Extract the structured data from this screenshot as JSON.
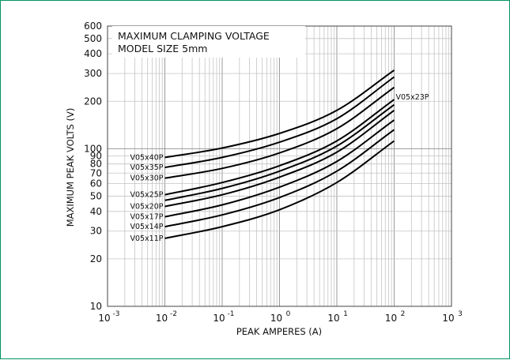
{
  "chart_data": {
    "type": "line",
    "title_lines": [
      "MAXIMUM CLAMPING VOLTAGE",
      "MODEL SIZE 5mm"
    ],
    "xlabel": "PEAK AMPERES (A)",
    "ylabel": "MAXIMUM PEAK VOLTS (V)",
    "x_scale": "log",
    "y_scale": "log",
    "xlim": [
      0.001,
      1000
    ],
    "ylim": [
      10,
      600
    ],
    "grid": true,
    "x_ticks": [
      {
        "base": "10",
        "exp": "-3"
      },
      {
        "base": "10",
        "exp": "-2"
      },
      {
        "base": "10",
        "exp": "-1"
      },
      {
        "base": "10",
        "exp": "0"
      },
      {
        "base": "10",
        "exp": "1"
      },
      {
        "base": "10",
        "exp": "2"
      },
      {
        "base": "10",
        "exp": "3"
      }
    ],
    "y_ticks": [
      "10",
      "20",
      "30",
      "40",
      "50",
      "60",
      "70",
      "80",
      "90",
      "100",
      "200",
      "300",
      "400",
      "500",
      "600"
    ],
    "series": [
      {
        "name": "V05x40P",
        "points": [
          [
            0.01,
            88
          ],
          [
            0.1,
            101
          ],
          [
            1,
            125
          ],
          [
            10,
            175
          ],
          [
            100,
            315
          ]
        ]
      },
      {
        "name": "V05x35P",
        "points": [
          [
            0.01,
            76
          ],
          [
            0.1,
            88
          ],
          [
            1,
            110
          ],
          [
            10,
            155
          ],
          [
            100,
            285
          ]
        ]
      },
      {
        "name": "V05x30P",
        "points": [
          [
            0.01,
            65
          ],
          [
            0.1,
            75
          ],
          [
            1,
            94
          ],
          [
            10,
            134
          ],
          [
            100,
            245
          ]
        ]
      },
      {
        "name": "V05x25P",
        "points": [
          [
            0.01,
            51
          ],
          [
            0.1,
            61
          ],
          [
            1,
            78
          ],
          [
            10,
            112
          ],
          [
            100,
            205
          ]
        ]
      },
      {
        "name": "V05x23P",
        "points": [
          [
            0.01,
            47
          ],
          [
            0.1,
            56
          ],
          [
            1,
            72
          ],
          [
            10,
            104
          ],
          [
            100,
            190
          ]
        ]
      },
      {
        "name": "V05x20P",
        "points": [
          [
            0.01,
            43
          ],
          [
            0.1,
            51
          ],
          [
            1,
            66
          ],
          [
            10,
            95
          ],
          [
            100,
            175
          ]
        ]
      },
      {
        "name": "V05x17P",
        "points": [
          [
            0.01,
            37
          ],
          [
            0.1,
            44
          ],
          [
            1,
            57
          ],
          [
            10,
            83
          ],
          [
            100,
            152
          ]
        ]
      },
      {
        "name": "V05x14P",
        "points": [
          [
            0.01,
            32
          ],
          [
            0.1,
            38
          ],
          [
            1,
            49
          ],
          [
            10,
            72
          ],
          [
            100,
            132
          ]
        ]
      },
      {
        "name": "V05x11P",
        "points": [
          [
            0.01,
            27
          ],
          [
            0.1,
            32
          ],
          [
            1,
            41
          ],
          [
            10,
            61
          ],
          [
            100,
            112
          ]
        ]
      }
    ]
  }
}
